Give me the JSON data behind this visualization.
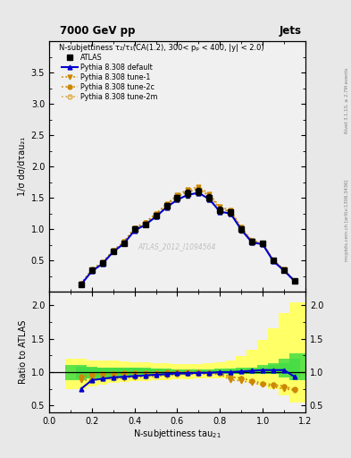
{
  "title_top": "7000 GeV pp",
  "title_right": "Jets",
  "watermark": "ATLAS_2012_I1094564",
  "right_label": "mcplots.cern.ch [arXiv:1306.3436]",
  "rivet_label": "Rivet 3.1.10, ≥ 2.7M events",
  "main_title": "N-subjettiness τ₂/τ₁(CA(1.2), 300< pₚ < 400, |y| < 2.0)",
  "ylabel_main": "1/σ dσ/dτau₂₁",
  "ylabel_ratio": "Ratio to ATLAS",
  "xlabel": "N-subjettiness tau",
  "xlabel_sub": "21",
  "x_values": [
    0.15,
    0.2,
    0.25,
    0.3,
    0.35,
    0.4,
    0.45,
    0.5,
    0.55,
    0.6,
    0.65,
    0.7,
    0.75,
    0.8,
    0.85,
    0.9,
    0.95,
    1.0,
    1.05,
    1.1,
    1.15
  ],
  "atlas_y": [
    0.12,
    0.35,
    0.46,
    0.65,
    0.78,
    1.0,
    1.08,
    1.22,
    1.37,
    1.5,
    1.57,
    1.6,
    1.5,
    1.3,
    1.27,
    1.0,
    0.8,
    0.77,
    0.5,
    0.35,
    0.18
  ],
  "atlas_err": [
    0.015,
    0.025,
    0.025,
    0.03,
    0.03,
    0.04,
    0.04,
    0.04,
    0.05,
    0.05,
    0.06,
    0.06,
    0.06,
    0.06,
    0.05,
    0.05,
    0.04,
    0.04,
    0.03,
    0.025,
    0.015
  ],
  "default_y": [
    0.12,
    0.33,
    0.45,
    0.64,
    0.77,
    0.98,
    1.07,
    1.2,
    1.35,
    1.47,
    1.55,
    1.58,
    1.48,
    1.28,
    1.25,
    0.99,
    0.79,
    0.76,
    0.49,
    0.34,
    0.17
  ],
  "tune1_y": [
    0.13,
    0.35,
    0.47,
    0.66,
    0.8,
    1.02,
    1.11,
    1.25,
    1.4,
    1.55,
    1.63,
    1.68,
    1.56,
    1.36,
    1.3,
    1.03,
    0.82,
    0.78,
    0.51,
    0.36,
    0.18
  ],
  "tune2c_y": [
    0.13,
    0.36,
    0.47,
    0.66,
    0.79,
    1.01,
    1.1,
    1.23,
    1.39,
    1.53,
    1.6,
    1.65,
    1.53,
    1.33,
    1.28,
    1.01,
    0.8,
    0.77,
    0.5,
    0.35,
    0.17
  ],
  "tune2m_y": [
    0.13,
    0.36,
    0.47,
    0.65,
    0.79,
    1.01,
    1.1,
    1.23,
    1.38,
    1.52,
    1.6,
    1.64,
    1.53,
    1.33,
    1.28,
    1.01,
    0.8,
    0.77,
    0.5,
    0.35,
    0.17
  ],
  "ratio_default": [
    0.75,
    0.88,
    0.9,
    0.92,
    0.93,
    0.94,
    0.95,
    0.96,
    0.97,
    0.98,
    0.98,
    0.99,
    0.99,
    1.0,
    1.0,
    1.01,
    1.02,
    1.03,
    1.03,
    1.03,
    0.93
  ],
  "ratio_tune1": [
    0.88,
    0.88,
    0.9,
    0.9,
    0.91,
    0.92,
    0.93,
    0.94,
    0.95,
    0.96,
    0.97,
    0.97,
    0.97,
    0.97,
    0.88,
    0.87,
    0.84,
    0.81,
    0.78,
    0.75,
    0.73
  ],
  "ratio_tune2c": [
    0.93,
    0.96,
    0.97,
    0.97,
    0.98,
    0.99,
    0.99,
    0.99,
    1.0,
    1.0,
    1.0,
    1.0,
    0.99,
    0.99,
    0.93,
    0.91,
    0.87,
    0.83,
    0.81,
    0.79,
    0.74
  ],
  "ratio_tune2m": [
    0.93,
    0.96,
    0.97,
    0.97,
    0.98,
    0.99,
    0.99,
    0.99,
    0.99,
    0.99,
    0.99,
    0.99,
    0.99,
    0.98,
    0.92,
    0.91,
    0.87,
    0.83,
    0.81,
    0.79,
    0.73
  ],
  "x_band": [
    0.125,
    0.175,
    0.225,
    0.275,
    0.325,
    0.375,
    0.425,
    0.475,
    0.525,
    0.575,
    0.625,
    0.675,
    0.725,
    0.775,
    0.825,
    0.875,
    0.925,
    0.975,
    1.025,
    1.075,
    1.125,
    1.175
  ],
  "green_band_lo": [
    0.88,
    0.9,
    0.91,
    0.92,
    0.93,
    0.94,
    0.94,
    0.95,
    0.95,
    0.96,
    0.96,
    0.97,
    0.97,
    0.97,
    0.97,
    0.97,
    0.97,
    0.97,
    0.97,
    0.97,
    0.92,
    0.88
  ],
  "green_band_hi": [
    1.1,
    1.08,
    1.07,
    1.07,
    1.07,
    1.06,
    1.06,
    1.05,
    1.05,
    1.04,
    1.04,
    1.04,
    1.04,
    1.04,
    1.05,
    1.05,
    1.06,
    1.07,
    1.1,
    1.14,
    1.2,
    1.28
  ],
  "yellow_band_lo": [
    0.75,
    0.78,
    0.81,
    0.84,
    0.85,
    0.87,
    0.87,
    0.88,
    0.88,
    0.89,
    0.89,
    0.9,
    0.9,
    0.9,
    0.9,
    0.9,
    0.88,
    0.85,
    0.8,
    0.75,
    0.65,
    0.55
  ],
  "yellow_band_hi": [
    1.2,
    1.18,
    1.17,
    1.17,
    1.16,
    1.15,
    1.15,
    1.14,
    1.13,
    1.12,
    1.12,
    1.12,
    1.12,
    1.13,
    1.15,
    1.18,
    1.24,
    1.33,
    1.48,
    1.65,
    1.88,
    2.05
  ],
  "color_default": "#0000cc",
  "color_tune": "#cc8800",
  "color_tune2m": "#ddaa44",
  "ylim_main": [
    0,
    4.0
  ],
  "ylim_ratio": [
    0.4,
    2.2
  ],
  "xlim": [
    0.0,
    1.2
  ],
  "yticks_main": [
    0.5,
    1.0,
    1.5,
    2.0,
    2.5,
    3.0,
    3.5
  ],
  "yticks_ratio": [
    0.5,
    1.0,
    1.5,
    2.0
  ],
  "bg_color": "#e8e8e8"
}
